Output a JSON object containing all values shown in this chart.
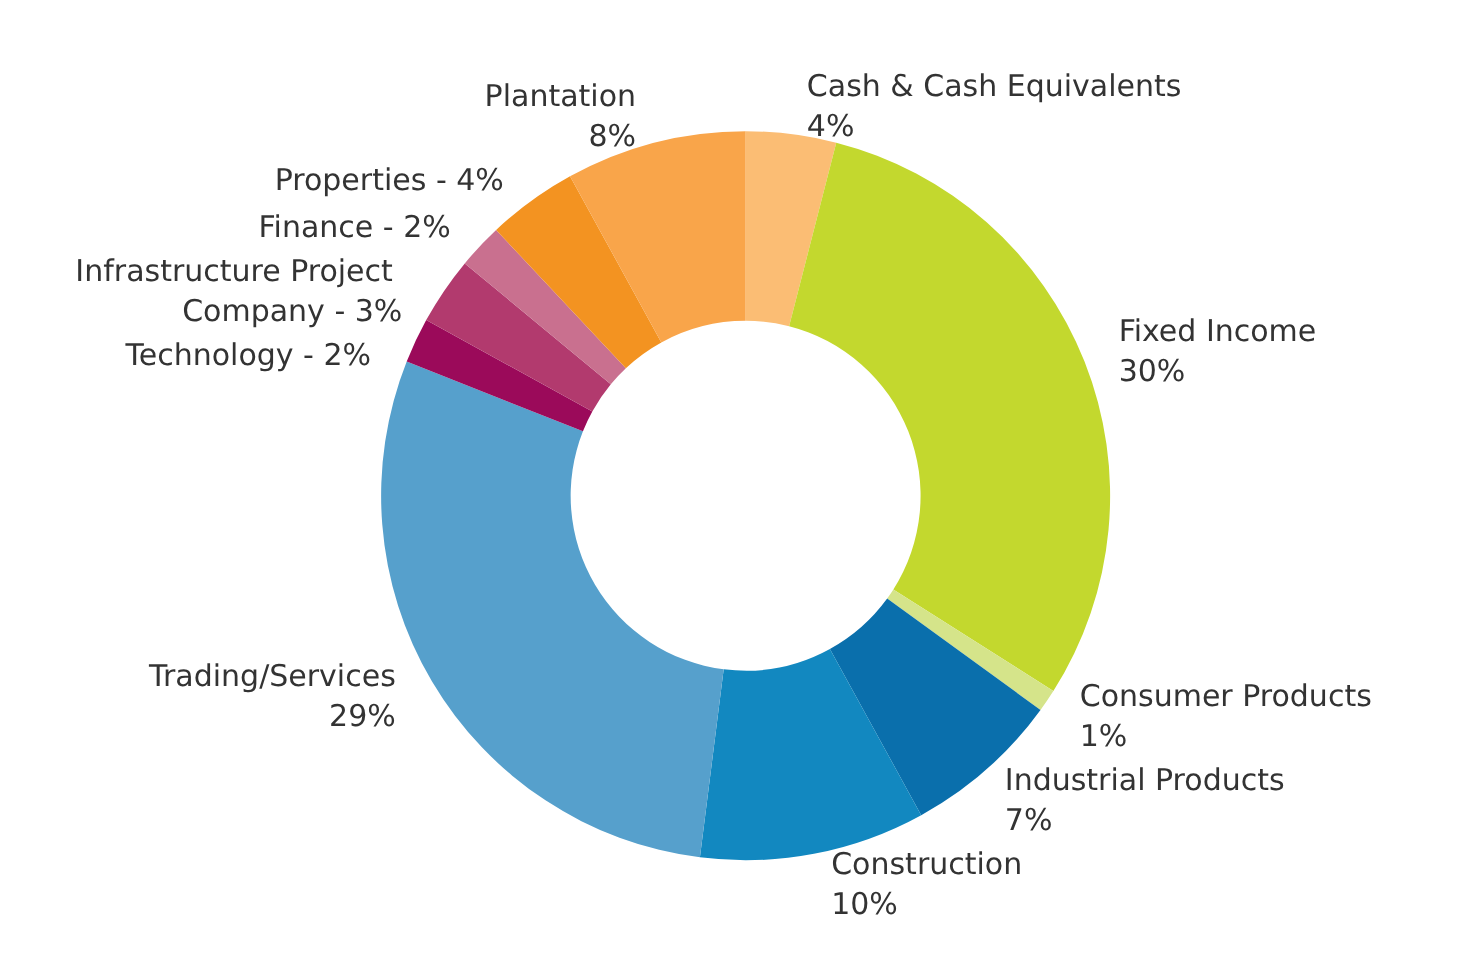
{
  "chart_data": {
    "type": "donut",
    "categories": [
      "Cash & Cash Equivalents",
      "Fixed Income",
      "Consumer Products",
      "Industrial Products",
      "Construction",
      "Trading/Services",
      "Technology - 2%",
      "Infrastructure Project Company - 3%",
      "Finance - 2%",
      "Properties - 4%",
      "Plantation"
    ],
    "values": [
      4,
      30,
      1,
      7,
      10,
      29,
      2,
      3,
      2,
      4,
      8
    ],
    "value_labels": [
      "4%",
      "30%",
      "1%",
      "7%",
      "10%",
      "29%",
      null,
      null,
      null,
      null,
      "8%"
    ],
    "colors": [
      "#fbbd74",
      "#c3d82e",
      "#d5e48a",
      "#0a6fac",
      "#1288c0",
      "#56a0cc",
      "#9b0a5a",
      "#b23a6e",
      "#c9708f",
      "#f39321",
      "#f9a54a"
    ],
    "legend": false
  }
}
